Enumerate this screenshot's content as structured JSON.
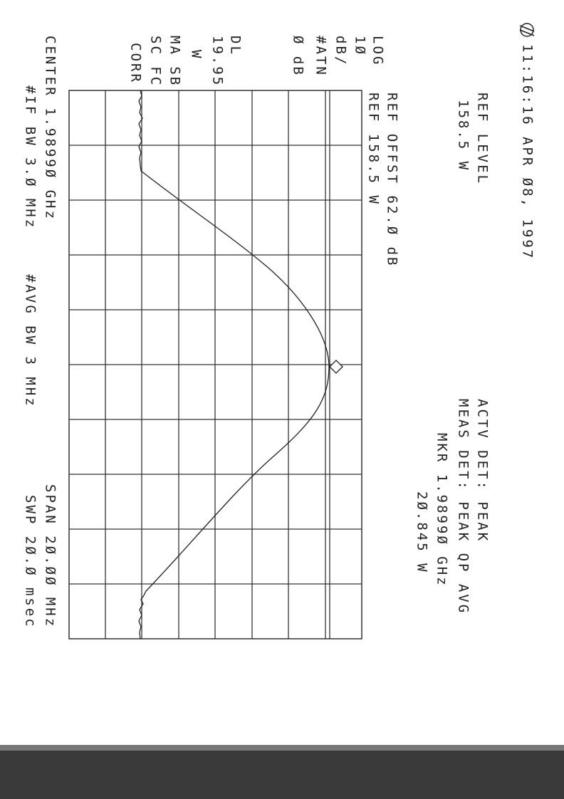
{
  "header": {
    "timestamp": "11:16:16 APR Ø8, 1997"
  },
  "ref_level": {
    "label": "REF LEVEL",
    "value": "158.5  W"
  },
  "detector": {
    "actv": "ACTV DET: PEAK",
    "meas": "MEAS DET: PEAK QP AVG"
  },
  "marker": {
    "frequency": "MKR 1.9899Ø GHz",
    "level": "2Ø.845  W"
  },
  "offset": {
    "line1": "REF OFFST 62.Ø dB",
    "line2": "REF 158.5  W"
  },
  "side_labels": [
    "LOG",
    "1Ø",
    "dB/",
    "#ATN",
    "Ø dB",
    "DL",
    "19.95",
    "W",
    "MA SB",
    "SC FC",
    "CORR"
  ],
  "footer": {
    "center": "CENTER 1.9899Ø GHz",
    "if_bw": "#IF BW 3.Ø MHz",
    "avg_bw": "#AVG BW 3 MHz",
    "span": "SPAN 2Ø.ØØ MHz",
    "sweep": "SWP 2Ø.Ø msec"
  }
}
